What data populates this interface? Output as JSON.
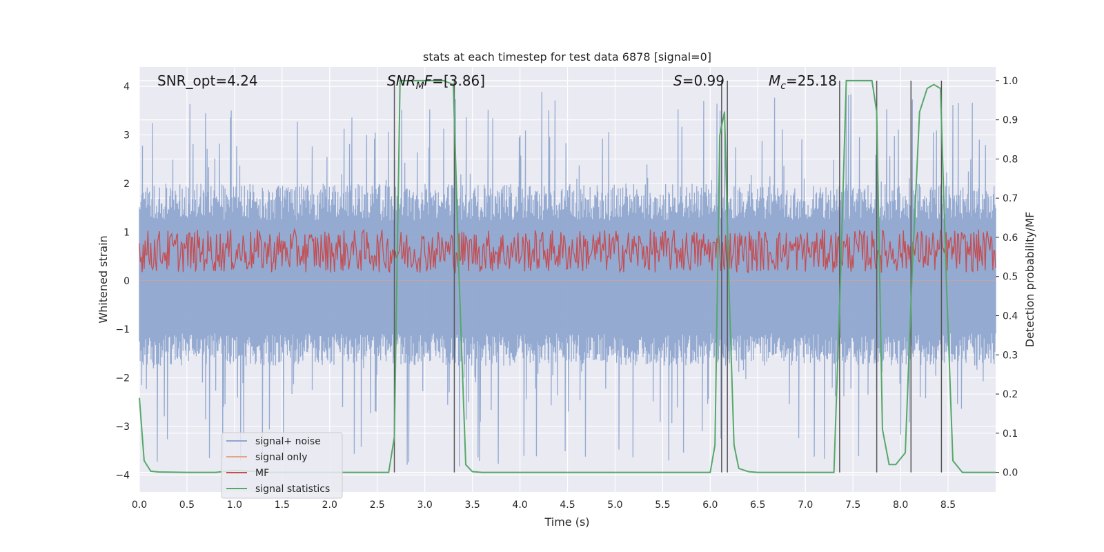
{
  "chart_data": {
    "type": "line",
    "title": "stats at each timestep for test data 6878 [signal=0]",
    "xlabel": "Time (s)",
    "ylabel_left": "Whitened strain",
    "ylabel_right": "Detection probability/MF",
    "xlim": [
      0.0,
      9.0
    ],
    "ylim_left": [
      -4.35,
      4.4
    ],
    "ylim_right": [
      -0.05,
      1.035
    ],
    "x_ticks": [
      0.0,
      0.5,
      1.0,
      1.5,
      2.0,
      2.5,
      3.0,
      3.5,
      4.0,
      4.5,
      5.0,
      5.5,
      6.0,
      6.5,
      7.0,
      7.5,
      8.0,
      8.5
    ],
    "x_tick_labels": [
      "0.0",
      "0.5",
      "1.0",
      "1.5",
      "2.0",
      "2.5",
      "3.0",
      "3.5",
      "4.0",
      "4.5",
      "5.0",
      "5.5",
      "6.0",
      "6.5",
      "7.0",
      "7.5",
      "8.0",
      "8.5"
    ],
    "y_left_ticks": [
      4,
      3,
      2,
      1,
      0,
      -1,
      -2,
      -3,
      -4
    ],
    "y_left_tick_labels": [
      "4",
      "3",
      "2",
      "1",
      "0",
      "−1",
      "−2",
      "−3",
      "−4"
    ],
    "y_right_ticks": [
      1.0,
      0.9,
      0.8,
      0.7,
      0.6,
      0.5,
      0.4,
      0.3,
      0.2,
      0.1,
      0.0
    ],
    "y_right_tick_labels": [
      "1.0",
      "0.9",
      "0.8",
      "0.7",
      "0.6",
      "0.5",
      "0.4",
      "0.3",
      "0.2",
      "0.1",
      "0.0"
    ],
    "annotations": {
      "snr_opt": "SNR_opt=4.24",
      "snr_mf": "SNR",
      "snr_mf_sub": "M",
      "snr_mf_rest": "F",
      "snr_mf_value": "=[3.86]",
      "s_sym": "S",
      "s_value": "=0.99",
      "mc_sym": "M",
      "mc_sub": "c",
      "mc_value": "=25.18"
    },
    "legend": {
      "placement": "lower-left",
      "entries": [
        "signal+ noise",
        "signal only",
        "MF",
        "signal statistics"
      ]
    },
    "colors": {
      "noise": "#8fa6cf",
      "signal_only": "#e8a387",
      "mf": "#c44e52",
      "stats": "#55a868",
      "vlines": "#555555",
      "background": "#eaeaf2",
      "grid": "#ffffff"
    },
    "series": [
      {
        "name": "signal+ noise",
        "axis": "left",
        "kind": "noise band",
        "typical_range": [
          -1.75,
          2.0
        ],
        "extremes": [
          -3.9,
          3.9
        ]
      },
      {
        "name": "signal only",
        "axis": "left",
        "values_constant": 0.0
      },
      {
        "name": "MF",
        "axis": "right",
        "kind": "noise band",
        "typical_range": [
          0.51,
          0.62
        ]
      },
      {
        "name": "signal statistics",
        "axis": "right",
        "x": [
          0.0,
          0.05,
          0.12,
          0.2,
          0.5,
          0.8,
          1.0,
          1.4,
          2.0,
          2.5,
          2.62,
          2.68,
          2.74,
          2.8,
          3.0,
          3.2,
          3.3,
          3.36,
          3.43,
          3.5,
          3.6,
          4.0,
          5.0,
          5.5,
          6.0,
          6.05,
          6.1,
          6.15,
          6.2,
          6.25,
          6.3,
          6.4,
          6.5,
          7.0,
          7.3,
          7.37,
          7.43,
          7.5,
          7.7,
          7.75,
          7.81,
          7.88,
          7.95,
          8.05,
          8.12,
          8.2,
          8.28,
          8.35,
          8.42,
          8.48,
          8.55,
          8.65,
          9.0
        ],
        "values": [
          0.19,
          0.03,
          0.003,
          0.001,
          0.0,
          0.0,
          0.005,
          0.0,
          0.0,
          0.0,
          0.0,
          0.09,
          1.0,
          1.0,
          1.0,
          1.0,
          0.99,
          0.5,
          0.02,
          0.002,
          0.0,
          0.0,
          0.0,
          0.0,
          0.0,
          0.07,
          0.86,
          0.92,
          0.45,
          0.07,
          0.01,
          0.002,
          0.0,
          0.0,
          0.0,
          0.5,
          1.0,
          1.0,
          1.0,
          0.92,
          0.11,
          0.02,
          0.02,
          0.05,
          0.5,
          0.92,
          0.98,
          0.99,
          0.98,
          0.5,
          0.03,
          0.0,
          0.0
        ]
      }
    ],
    "vertical_lines_x": [
      2.68,
      3.31,
      6.12,
      6.18,
      7.36,
      7.75,
      8.11,
      8.43
    ]
  }
}
